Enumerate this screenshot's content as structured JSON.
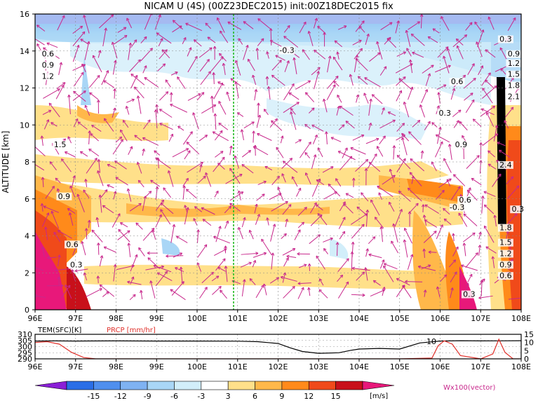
{
  "title": "NICAM U (4S) (00Z23DEC2015) init:00Z18DEC2015 fix",
  "chart_data": [
    {
      "type": "heatmap",
      "variable": "U",
      "xlabel": "",
      "ylabel": "ALTITUDE [km]",
      "x_ticks": [
        "96E",
        "97E",
        "98E",
        "99E",
        "100E",
        "101E",
        "102E",
        "103E",
        "104E",
        "105E",
        "106E",
        "107E",
        "108E"
      ],
      "y_ticks": [
        "0",
        "2",
        "4",
        "6",
        "8",
        "10",
        "12",
        "14",
        "16"
      ],
      "xlim": [
        96,
        108
      ],
      "ylim": [
        0,
        16
      ],
      "grid": true,
      "marker_line_lon": 100.9,
      "contour_labels": [
        {
          "text": "0.6",
          "lon": 96.3,
          "alt": 13.7
        },
        {
          "text": "0.9",
          "lon": 96.3,
          "alt": 13.1
        },
        {
          "text": "1.2",
          "lon": 96.3,
          "alt": 12.5
        },
        {
          "text": "1.5",
          "lon": 96.6,
          "alt": 8.8
        },
        {
          "text": "0.9",
          "lon": 96.7,
          "alt": 6.0
        },
        {
          "text": "0.6",
          "lon": 96.9,
          "alt": 3.4
        },
        {
          "text": "0.3",
          "lon": 97.0,
          "alt": 2.3
        },
        {
          "text": "-0.3",
          "lon": 102.2,
          "alt": 13.9
        },
        {
          "text": "0.6",
          "lon": 106.4,
          "alt": 12.2
        },
        {
          "text": "0.3",
          "lon": 106.1,
          "alt": 10.5
        },
        {
          "text": "0.9",
          "lon": 106.5,
          "alt": 8.8
        },
        {
          "text": "0.6",
          "lon": 106.6,
          "alt": 5.8
        },
        {
          "text": "-0.3",
          "lon": 106.4,
          "alt": 5.4
        },
        {
          "text": "0.3",
          "lon": 106.7,
          "alt": 0.7
        },
        {
          "text": "0.3",
          "lon": 107.6,
          "alt": 14.5
        },
        {
          "text": "0.9",
          "lon": 107.8,
          "alt": 13.7
        },
        {
          "text": "1.2",
          "lon": 107.8,
          "alt": 13.2
        },
        {
          "text": "1.5",
          "lon": 107.8,
          "alt": 12.6
        },
        {
          "text": "1.8",
          "lon": 107.8,
          "alt": 12.0
        },
        {
          "text": "2.1",
          "lon": 107.8,
          "alt": 11.4
        },
        {
          "text": "2.4",
          "lon": 107.6,
          "alt": 7.7
        },
        {
          "text": "0.3",
          "lon": 107.9,
          "alt": 5.3
        },
        {
          "text": "1.8",
          "lon": 107.6,
          "alt": 4.3
        },
        {
          "text": "1.5",
          "lon": 107.6,
          "alt": 3.5
        },
        {
          "text": "1.2",
          "lon": 107.6,
          "alt": 2.9
        },
        {
          "text": "0.9",
          "lon": 107.6,
          "alt": 2.3
        },
        {
          "text": "0.6",
          "lon": 107.6,
          "alt": 1.7
        }
      ]
    },
    {
      "type": "line",
      "xlim": [
        96,
        108
      ],
      "x_ticks": [
        "96E",
        "97E",
        "98E",
        "99E",
        "100E",
        "101E",
        "102E",
        "103E",
        "104E",
        "105E",
        "106E",
        "107E",
        "108E"
      ],
      "left_axis_label": "TEM(SFC)[K]",
      "left_ticks": [
        "290",
        "295",
        "300",
        "305",
        "310"
      ],
      "left_ylim": [
        290,
        310
      ],
      "right_axis_label": "PRCP [mm/hr]",
      "right_ticks": [
        "0",
        "5",
        "10",
        "15"
      ],
      "right_ylim": [
        0,
        15
      ],
      "annotation": "10",
      "series": [
        {
          "name": "TEM(SFC)[K]",
          "color": "#000000",
          "x": [
            96,
            96.5,
            97,
            98,
            99,
            100,
            101,
            101.5,
            102,
            102.3,
            102.6,
            103,
            103.5,
            103.8,
            104,
            104.5,
            105,
            105.5,
            106,
            106.5,
            107,
            107.5,
            108
          ],
          "y": [
            304.5,
            304.6,
            304.5,
            304.6,
            304.5,
            304.5,
            304.4,
            304.0,
            302.5,
            299.0,
            296.0,
            294.5,
            295.0,
            297.0,
            298.0,
            298.5,
            298.0,
            303.0,
            304.5,
            304.8,
            304.6,
            304.7,
            304.8
          ]
        },
        {
          "name": "PRCP [mm/hr]",
          "color": "#e0302a",
          "x": [
            96,
            96.3,
            96.6,
            96.9,
            97.2,
            97.5,
            98,
            99,
            100,
            101,
            102,
            103,
            104,
            105,
            105.8,
            105.95,
            106.1,
            106.3,
            106.5,
            107,
            107.3,
            107.45,
            107.6,
            107.8,
            108
          ],
          "y": [
            10,
            10.5,
            9,
            4,
            0.8,
            0,
            0,
            0,
            0,
            0,
            0,
            0,
            0,
            0,
            0.5,
            8,
            11,
            9,
            2,
            0,
            3,
            12,
            4,
            0,
            0
          ]
        }
      ]
    }
  ],
  "colorbar": {
    "ticks": [
      "-15",
      "-12",
      "-9",
      "-6",
      "-3",
      "3",
      "6",
      "9",
      "12",
      "15"
    ],
    "unit": "[m/s]",
    "colors": [
      "#8a1fd6",
      "#2a6ee6",
      "#4f8fee",
      "#7fb2f2",
      "#a9d6f6",
      "#d2eefa",
      "#ffffff",
      "#ffe08a",
      "#ffb84a",
      "#ff8a1a",
      "#f04a1a",
      "#c8101a",
      "#e8187a"
    ]
  },
  "vector_label": "Wx100(vector)"
}
